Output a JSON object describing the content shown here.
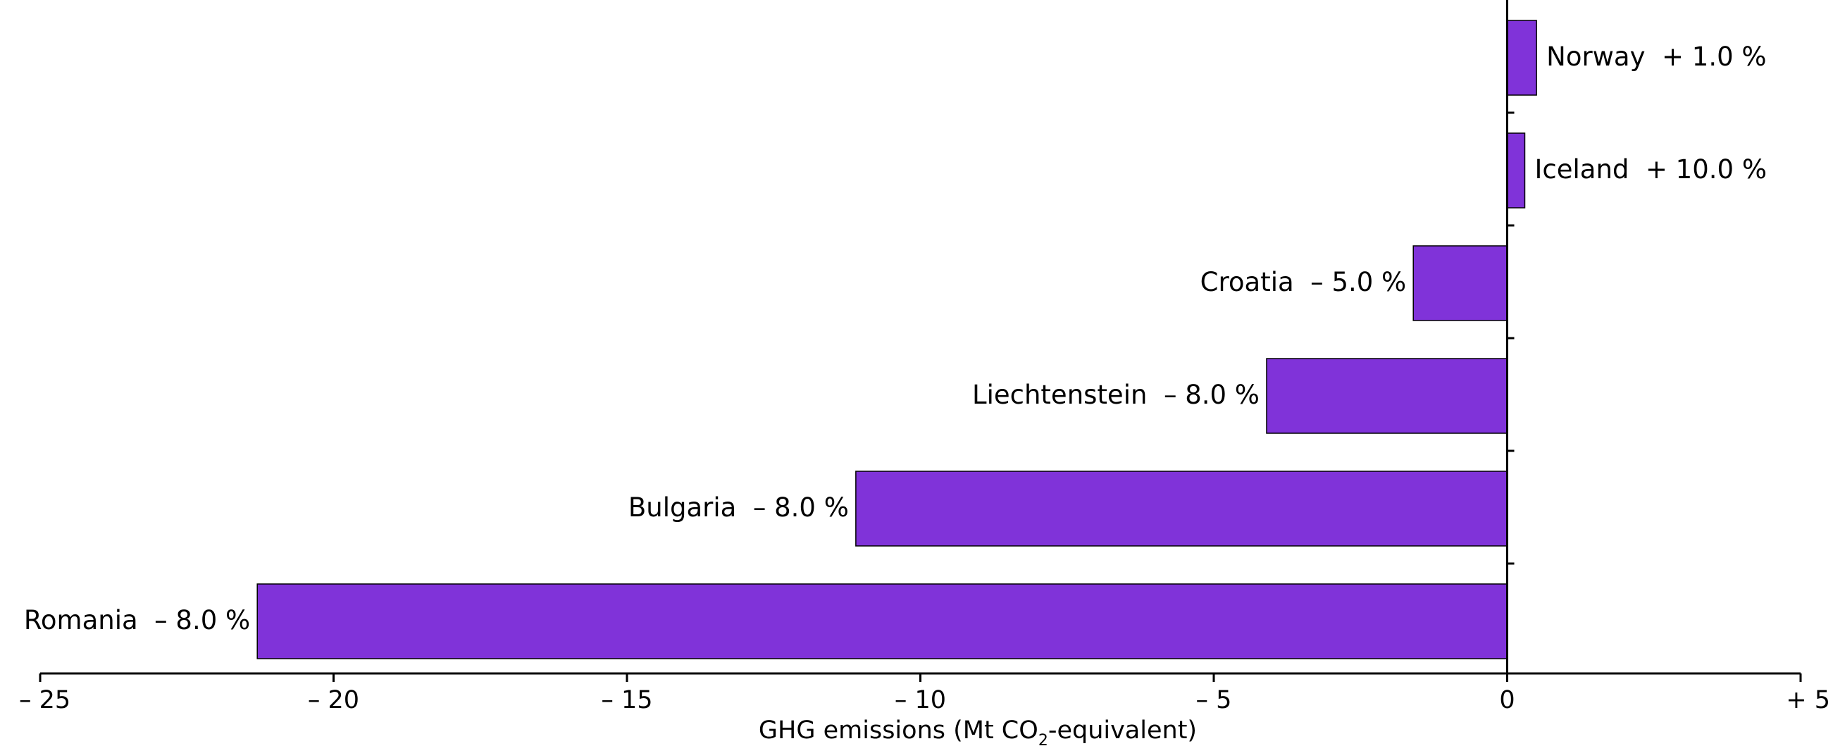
{
  "chart_data": {
    "type": "bar",
    "orientation": "horizontal",
    "categories": [
      "Norway",
      "Iceland",
      "Croatia",
      "Liechtenstein",
      "Bulgaria",
      "Romania"
    ],
    "values": [
      0.5,
      0.3,
      -1.6,
      -4.1,
      -11.1,
      -21.3
    ],
    "bar_labels": [
      "Norway  + 1.0 %",
      "Iceland  + 10.0 %",
      "Croatia  – 5.0 %",
      "Liechtenstein  – 8.0 %",
      "Bulgaria  – 8.0 %",
      "Romania  – 8.0 %"
    ],
    "bar_color": "#8033d9",
    "x_ticks": [
      -25,
      -20,
      -15,
      -10,
      -5,
      0,
      5
    ],
    "x_tick_labels": [
      "– 25",
      "– 20",
      "– 15",
      "– 10",
      "– 5",
      "0",
      "+ 5"
    ],
    "xlim": [
      -25,
      5
    ],
    "xlabel": {
      "prefix": "GHG emissions (Mt CO",
      "subscript": "2",
      "suffix": "-equivalent)"
    },
    "ylabel": "",
    "title": "",
    "grid": false,
    "legend": "none"
  }
}
